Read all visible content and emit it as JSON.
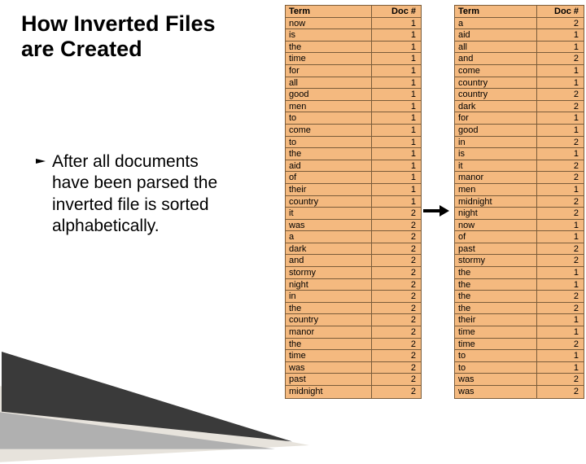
{
  "title": "How Inverted Files are Created",
  "bullet_text": "After all documents have been parsed the inverted file is sorted alphabetically.",
  "colors": {
    "table_bg": "#f4b97f",
    "table_border": "#7a5c3a",
    "text": "#000000",
    "decor_light": "#e7e3dc",
    "decor_dark": "#3a3a3a",
    "decor_gray": "#b0b0b0",
    "background": "#ffffff"
  },
  "font_sizes": {
    "title": 27,
    "body": 21,
    "table": 11
  },
  "table_headers": {
    "term": "Term",
    "doc": "Doc #"
  },
  "left_table": [
    [
      "now",
      "1"
    ],
    [
      "is",
      "1"
    ],
    [
      "the",
      "1"
    ],
    [
      "time",
      "1"
    ],
    [
      "for",
      "1"
    ],
    [
      "all",
      "1"
    ],
    [
      "good",
      "1"
    ],
    [
      "men",
      "1"
    ],
    [
      "to",
      "1"
    ],
    [
      "come",
      "1"
    ],
    [
      "to",
      "1"
    ],
    [
      "the",
      "1"
    ],
    [
      "aid",
      "1"
    ],
    [
      "of",
      "1"
    ],
    [
      "their",
      "1"
    ],
    [
      "country",
      "1"
    ],
    [
      "it",
      "2"
    ],
    [
      "was",
      "2"
    ],
    [
      "a",
      "2"
    ],
    [
      "dark",
      "2"
    ],
    [
      "and",
      "2"
    ],
    [
      "stormy",
      "2"
    ],
    [
      "night",
      "2"
    ],
    [
      "in",
      "2"
    ],
    [
      "the",
      "2"
    ],
    [
      "country",
      "2"
    ],
    [
      "manor",
      "2"
    ],
    [
      "the",
      "2"
    ],
    [
      "time",
      "2"
    ],
    [
      "was",
      "2"
    ],
    [
      "past",
      "2"
    ],
    [
      "midnight",
      "2"
    ]
  ],
  "right_table": [
    [
      "a",
      "2"
    ],
    [
      "aid",
      "1"
    ],
    [
      "all",
      "1"
    ],
    [
      "and",
      "2"
    ],
    [
      "come",
      "1"
    ],
    [
      "country",
      "1"
    ],
    [
      "country",
      "2"
    ],
    [
      "dark",
      "2"
    ],
    [
      "for",
      "1"
    ],
    [
      "good",
      "1"
    ],
    [
      "in",
      "2"
    ],
    [
      "is",
      "1"
    ],
    [
      "it",
      "2"
    ],
    [
      "manor",
      "2"
    ],
    [
      "men",
      "1"
    ],
    [
      "midnight",
      "2"
    ],
    [
      "night",
      "2"
    ],
    [
      "now",
      "1"
    ],
    [
      "of",
      "1"
    ],
    [
      "past",
      "2"
    ],
    [
      "stormy",
      "2"
    ],
    [
      "the",
      "1"
    ],
    [
      "the",
      "1"
    ],
    [
      "the",
      "2"
    ],
    [
      "the",
      "2"
    ],
    [
      "their",
      "1"
    ],
    [
      "time",
      "1"
    ],
    [
      "time",
      "2"
    ],
    [
      "to",
      "1"
    ],
    [
      "to",
      "1"
    ],
    [
      "was",
      "2"
    ],
    [
      "was",
      "2"
    ]
  ]
}
